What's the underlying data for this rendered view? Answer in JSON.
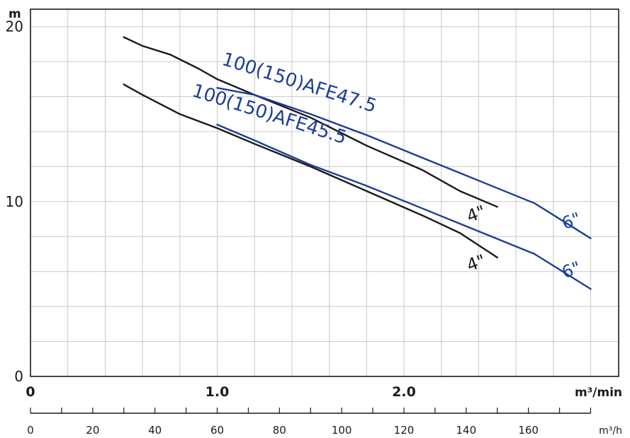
{
  "chart_data": {
    "type": "line",
    "ylabel": "m",
    "ylim": [
      0,
      21
    ],
    "yticks": [
      0,
      10,
      20
    ],
    "x_unit_primary": "m³/min",
    "xlim_primary": [
      0,
      3.15
    ],
    "xticks_primary": [
      0,
      1.0,
      2.0
    ],
    "xtick_labels_primary": [
      "0",
      "1.0",
      "2.0"
    ],
    "x_unit_secondary": "m³/h",
    "xticks_secondary": [
      0,
      20,
      40,
      60,
      80,
      100,
      120,
      140,
      160
    ],
    "xtick_labels_secondary": [
      "0",
      "20",
      "40",
      "60",
      "80",
      "100",
      "120",
      "140",
      "160"
    ],
    "grid": true,
    "colors": {
      "black_curve": "#1a1a1a",
      "blue_curve": "#1c3f94"
    },
    "series": [
      {
        "model": "AFE47.5",
        "size": "4\"",
        "color": "#1a1a1a",
        "points": [
          [
            0.5,
            19.4
          ],
          [
            0.6,
            18.9
          ],
          [
            0.75,
            18.4
          ],
          [
            0.9,
            17.6
          ],
          [
            1.0,
            17.0
          ],
          [
            1.2,
            16.1
          ],
          [
            1.5,
            14.8
          ],
          [
            1.8,
            13.2
          ],
          [
            2.1,
            11.8
          ],
          [
            2.3,
            10.6
          ],
          [
            2.5,
            9.7
          ]
        ]
      },
      {
        "model": "AFE45.5",
        "size": "4\"",
        "color": "#1a1a1a",
        "points": [
          [
            0.5,
            16.7
          ],
          [
            0.6,
            16.1
          ],
          [
            0.8,
            15.0
          ],
          [
            1.0,
            14.2
          ],
          [
            1.2,
            13.3
          ],
          [
            1.5,
            12.0
          ],
          [
            1.8,
            10.6
          ],
          [
            2.1,
            9.2
          ],
          [
            2.3,
            8.2
          ],
          [
            2.4,
            7.5
          ],
          [
            2.5,
            6.8
          ]
        ]
      },
      {
        "model": "AFE47.5",
        "size": "6\"",
        "color": "#1c3f94",
        "points": [
          [
            1.0,
            16.5
          ],
          [
            1.2,
            16.1
          ],
          [
            1.5,
            15.0
          ],
          [
            1.8,
            13.8
          ],
          [
            2.1,
            12.5
          ],
          [
            2.4,
            11.2
          ],
          [
            2.7,
            9.9
          ],
          [
            3.0,
            7.9
          ]
        ]
      },
      {
        "model": "AFE45.5",
        "size": "6\"",
        "color": "#1c3f94",
        "points": [
          [
            1.0,
            14.4
          ],
          [
            1.2,
            13.5
          ],
          [
            1.5,
            12.1
          ],
          [
            1.8,
            10.9
          ],
          [
            2.1,
            9.6
          ],
          [
            2.4,
            8.3
          ],
          [
            2.7,
            7.0
          ],
          [
            3.0,
            5.0
          ]
        ]
      }
    ],
    "model_labels": [
      {
        "text": "100(150)AFE47.5",
        "anchor": [
          1.02,
          17.85
        ],
        "angle": 17.5
      },
      {
        "text": "100(150)AFE45.5",
        "anchor": [
          0.86,
          16.05
        ],
        "angle": 17.5
      }
    ],
    "size_labels": [
      {
        "text": "4\"",
        "anchor": [
          2.35,
          8.8
        ],
        "color": "#1a1a1a"
      },
      {
        "text": "4\"",
        "anchor": [
          2.35,
          6.0
        ],
        "color": "#1a1a1a"
      },
      {
        "text": "6\"",
        "anchor": [
          2.86,
          8.4
        ],
        "color": "#1c3f94"
      },
      {
        "text": "6\"",
        "anchor": [
          2.86,
          5.6
        ],
        "color": "#1c3f94"
      }
    ]
  }
}
